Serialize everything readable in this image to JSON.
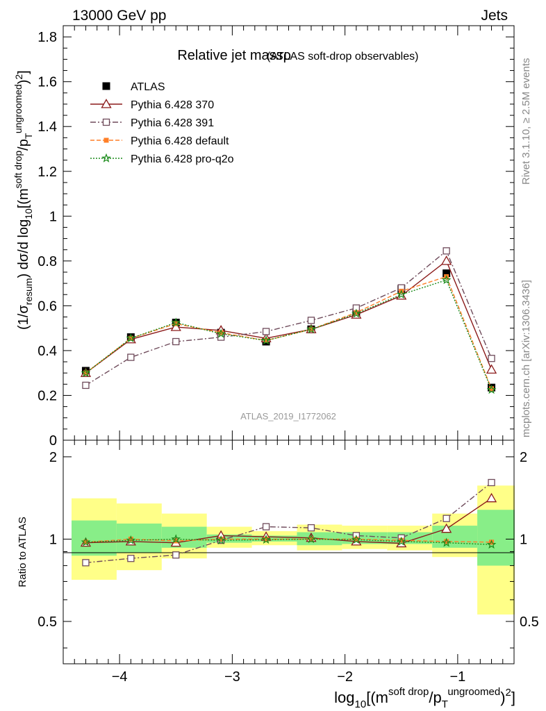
{
  "header": {
    "left": "13000 GeV pp",
    "right": "Jets"
  },
  "side_labels": {
    "rivet": "Rivet 3.1.10, ≥ 2.5M events",
    "mcplots": "mcplots.cern.ch [arXiv:1306.3436]"
  },
  "chart_data": [
    {
      "type": "line",
      "title": "Relative jet massρ",
      "subtitle": "(ATLAS soft-drop observables)",
      "analysis_id": "ATLAS_2019_I1772062",
      "ylabel": "(1/σresum) dσ/d log10[(m soft drop/pT ungroomed)²]",
      "ylim": [
        0,
        1.85
      ],
      "yticks": [
        0,
        0.2,
        0.4,
        0.6,
        0.8,
        1,
        1.2,
        1.4,
        1.6,
        1.8
      ],
      "ytick_labels": [
        "0",
        "0.2",
        "0.4",
        "0.6",
        "0.8",
        "1",
        "1.2",
        "1.4",
        "1.6",
        "1.8"
      ],
      "xlim": [
        -4.5,
        -0.5
      ],
      "legend_position": "top-left",
      "x": [
        -4.3,
        -3.9,
        -3.5,
        -3.1,
        -2.7,
        -2.3,
        -1.9,
        -1.5,
        -1.1,
        -0.7
      ],
      "series": [
        {
          "name": "ATLAS",
          "color": "#000000",
          "marker": "square-filled",
          "values": [
            0.31,
            0.46,
            0.525,
            0.48,
            0.44,
            0.495,
            0.565,
            0.675,
            0.745,
            0.235
          ]
        },
        {
          "name": "Pythia 6.428 370",
          "color": "#8b1a1a",
          "marker": "triangle-open",
          "values": [
            0.3,
            0.45,
            0.505,
            0.49,
            0.455,
            0.495,
            0.56,
            0.645,
            0.8,
            0.315
          ]
        },
        {
          "name": "Pythia 6.428 391",
          "color": "#6e4a5a",
          "marker": "square-open",
          "values": [
            0.245,
            0.37,
            0.44,
            0.46,
            0.485,
            0.535,
            0.59,
            0.68,
            0.845,
            0.365
          ]
        },
        {
          "name": "Pythia 6.428 default",
          "color": "#ff7f27",
          "marker": "square-filled-small",
          "values": [
            0.3,
            0.455,
            0.52,
            0.48,
            0.445,
            0.495,
            0.57,
            0.665,
            0.73,
            0.23
          ]
        },
        {
          "name": "Pythia 6.428 pro-q2o",
          "color": "#1a8a1a",
          "marker": "star",
          "values": [
            0.3,
            0.455,
            0.525,
            0.475,
            0.445,
            0.495,
            0.565,
            0.65,
            0.715,
            0.225
          ]
        }
      ]
    },
    {
      "type": "line",
      "ylabel": "Ratio to ATLAS",
      "xlabel": "log10[(m soft drop/pT ungroomed)²]",
      "ylim": [
        0.35,
        2.3
      ],
      "yticks": [
        0.5,
        1,
        2
      ],
      "ytick_labels": [
        "0.5",
        "1",
        "2"
      ],
      "xlim": [
        -4.5,
        -0.5
      ],
      "xticks": [
        -4,
        -3,
        -2,
        -1
      ],
      "xtick_labels": [
        "−4",
        "−3",
        "−2",
        "−1"
      ],
      "bin_edges": [
        -4.5,
        -4.1,
        -3.7,
        -3.3,
        -2.9,
        -2.5,
        -2.1,
        -1.7,
        -1.3,
        -0.9,
        -0.5
      ],
      "band_inner": [
        [
          0.87,
          1.17
        ],
        [
          0.89,
          1.14
        ],
        [
          0.93,
          1.11
        ],
        [
          0.97,
          1.04
        ],
        [
          0.98,
          1.03
        ],
        [
          0.95,
          1.06
        ],
        [
          0.96,
          1.06
        ],
        [
          0.96,
          1.06
        ],
        [
          0.93,
          1.12
        ],
        [
          0.8,
          1.28
        ]
      ],
      "band_outer": [
        [
          0.71,
          1.41
        ],
        [
          0.77,
          1.35
        ],
        [
          0.85,
          1.24
        ],
        [
          0.93,
          1.11
        ],
        [
          0.95,
          1.07
        ],
        [
          0.91,
          1.13
        ],
        [
          0.92,
          1.12
        ],
        [
          0.91,
          1.12
        ],
        [
          0.86,
          1.24
        ],
        [
          0.53,
          1.57
        ]
      ],
      "x": [
        -4.3,
        -3.9,
        -3.5,
        -3.1,
        -2.7,
        -2.3,
        -1.9,
        -1.5,
        -1.1,
        -0.7
      ],
      "series": [
        {
          "name": "Pythia 6.428 370",
          "color": "#8b1a1a",
          "marker": "triangle-open",
          "values": [
            0.97,
            0.98,
            0.97,
            1.03,
            1.02,
            1.01,
            0.98,
            0.965,
            1.09,
            1.41
          ]
        },
        {
          "name": "Pythia 6.428 391",
          "color": "#6e4a5a",
          "marker": "square-open",
          "values": [
            0.82,
            0.85,
            0.875,
            0.99,
            1.11,
            1.1,
            1.03,
            1.01,
            1.19,
            1.61
          ]
        },
        {
          "name": "Pythia 6.428 default",
          "color": "#ff7f27",
          "marker": "square-filled-small",
          "values": [
            0.975,
            1.0,
            0.985,
            1.0,
            1.0,
            1.0,
            1.0,
            0.99,
            0.98,
            0.975
          ]
        },
        {
          "name": "Pythia 6.428 pro-q2o",
          "color": "#1a8a1a",
          "marker": "star",
          "values": [
            0.975,
            0.99,
            1.0,
            0.99,
            0.995,
            1.0,
            0.995,
            0.98,
            0.97,
            0.955
          ]
        }
      ]
    }
  ]
}
